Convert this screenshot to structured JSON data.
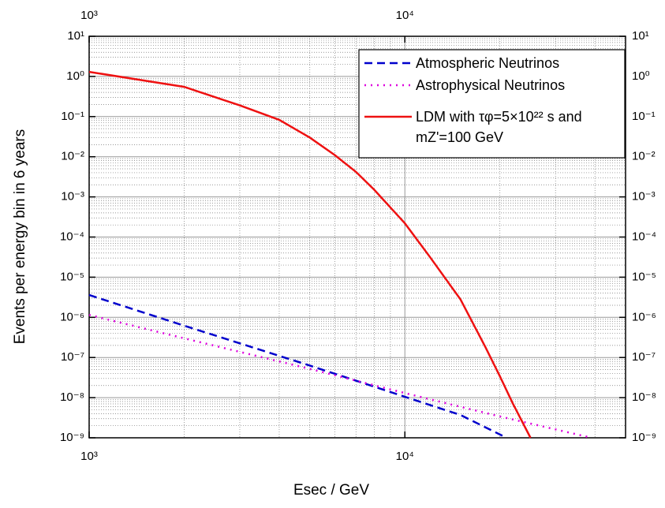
{
  "chart_data": {
    "type": "line",
    "xlabel": "Esec / GeV",
    "ylabel": "Events per energy bin in 6 years",
    "xlog": true,
    "ylog": true,
    "grid": true,
    "legend": "upper right",
    "xlim": [
      1000,
      50000
    ],
    "ylim": [
      1e-09,
      10
    ],
    "xticks": [
      {
        "value": 1000,
        "label": "10³"
      },
      {
        "value": 10000,
        "label": "10⁴"
      }
    ],
    "yticks": [
      {
        "value": 1e-09,
        "label": "10⁻⁹"
      },
      {
        "value": 1e-08,
        "label": "10⁻⁸"
      },
      {
        "value": 1e-07,
        "label": "10⁻⁷"
      },
      {
        "value": 1e-06,
        "label": "10⁻⁶"
      },
      {
        "value": 1e-05,
        "label": "10⁻⁵"
      },
      {
        "value": 0.0001,
        "label": "10⁻⁴"
      },
      {
        "value": 0.001,
        "label": "10⁻³"
      },
      {
        "value": 0.01,
        "label": "10⁻²"
      },
      {
        "value": 0.1,
        "label": "10⁻¹"
      },
      {
        "value": 1,
        "label": "10⁰"
      },
      {
        "value": 10,
        "label": "10¹"
      }
    ],
    "series": [
      {
        "name": "Atmospheric Neutrinos",
        "color": "#0000cc",
        "dash": "10,6",
        "x": [
          1000,
          2000,
          5000,
          10000,
          15000,
          21000
        ],
        "values": [
          3.6e-06,
          6.2e-07,
          6.3e-08,
          1.05e-08,
          3.7e-09,
          1e-09
        ]
      },
      {
        "name": "Astrophysical Neutrinos",
        "color": "#dd00dd",
        "dash": "2,6",
        "x": [
          1000,
          2000,
          5000,
          10000,
          20000,
          39000
        ],
        "values": [
          1.15e-06,
          3e-07,
          5.2e-08,
          1.3e-08,
          3.4e-09,
          1e-09
        ]
      },
      {
        "name": "LDM with τφ=5×10²² s and mZ'=100 GeV",
        "color": "#ee1111",
        "dash": "none",
        "x": [
          1000,
          2000,
          3000,
          4000,
          5000,
          6000,
          7000,
          8000,
          10000,
          12000,
          15000,
          18000,
          20000,
          22000,
          25000
        ],
        "values": [
          1.3,
          0.55,
          0.19,
          0.083,
          0.03,
          0.011,
          0.0042,
          0.0015,
          0.00022,
          3.2e-05,
          2.8e-06,
          1.8e-07,
          3.4e-08,
          7e-09,
          1e-09
        ]
      }
    ]
  }
}
